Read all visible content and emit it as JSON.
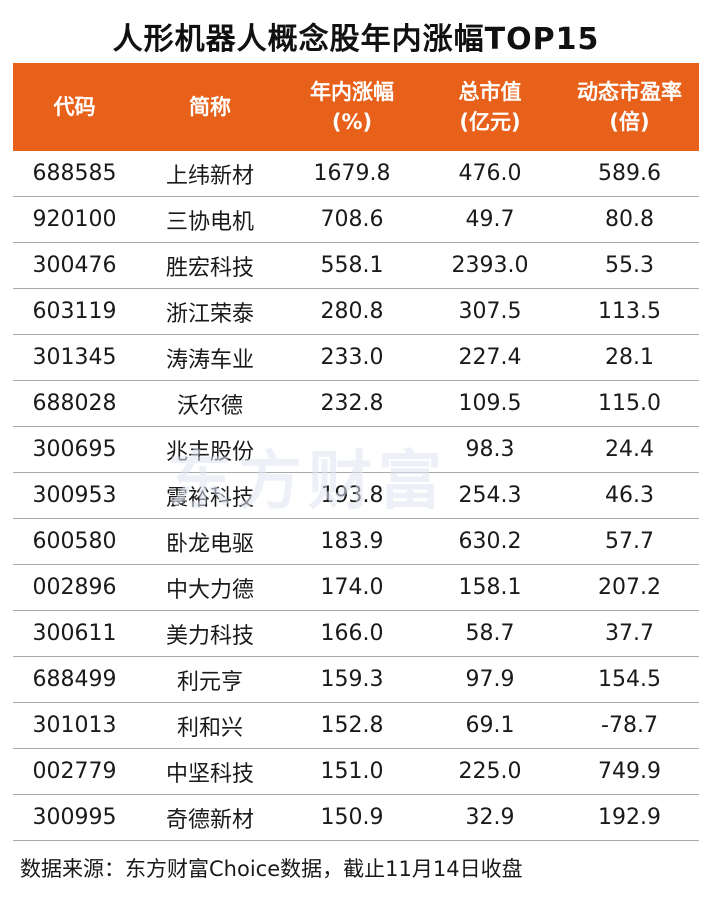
{
  "title": "人形机器人概念股年内涨幅TOP15",
  "watermark": "东方财富",
  "header": {
    "code": "代码",
    "name": "简称",
    "gain_line1": "年内涨幅",
    "gain_line2": "(%)",
    "cap_line1": "总市值",
    "cap_line2": "(亿元)",
    "pe_line1": "动态市盈率",
    "pe_line2": "(倍)"
  },
  "colors": {
    "header_bg": "#e8611a",
    "header_text": "#ffffff"
  },
  "rows": [
    {
      "code": "688585",
      "name": "上纬新材",
      "gain": "1679.8",
      "cap": "476.0",
      "pe": "589.6"
    },
    {
      "code": "920100",
      "name": "三协电机",
      "gain": "708.6",
      "cap": "49.7",
      "pe": "80.8"
    },
    {
      "code": "300476",
      "name": "胜宏科技",
      "gain": "558.1",
      "cap": "2393.0",
      "pe": "55.3"
    },
    {
      "code": "603119",
      "name": "浙江荣泰",
      "gain": "280.8",
      "cap": "307.5",
      "pe": "113.5"
    },
    {
      "code": "301345",
      "name": "涛涛车业",
      "gain": "233.0",
      "cap": "227.4",
      "pe": "28.1"
    },
    {
      "code": "688028",
      "name": "沃尔德",
      "gain": "232.8",
      "cap": "109.5",
      "pe": "115.0"
    },
    {
      "code": "300695",
      "name": "兆丰股份",
      "gain": "",
      "cap": "98.3",
      "pe": "24.4"
    },
    {
      "code": "300953",
      "name": "震裕科技",
      "gain": "193.8",
      "cap": "254.3",
      "pe": "46.3"
    },
    {
      "code": "600580",
      "name": "卧龙电驱",
      "gain": "183.9",
      "cap": "630.2",
      "pe": "57.7"
    },
    {
      "code": "002896",
      "name": "中大力德",
      "gain": "174.0",
      "cap": "158.1",
      "pe": "207.2"
    },
    {
      "code": "300611",
      "name": "美力科技",
      "gain": "166.0",
      "cap": "58.7",
      "pe": "37.7"
    },
    {
      "code": "688499",
      "name": "利元亨",
      "gain": "159.3",
      "cap": "97.9",
      "pe": "154.5"
    },
    {
      "code": "301013",
      "name": "利和兴",
      "gain": "152.8",
      "cap": "69.1",
      "pe": "-78.7"
    },
    {
      "code": "002779",
      "name": "中坚科技",
      "gain": "151.0",
      "cap": "225.0",
      "pe": "749.9"
    },
    {
      "code": "300995",
      "name": "奇德新材",
      "gain": "150.9",
      "cap": "32.9",
      "pe": "192.9"
    }
  ],
  "source": "数据来源：东方财富Choice数据，截止11月14日收盘"
}
